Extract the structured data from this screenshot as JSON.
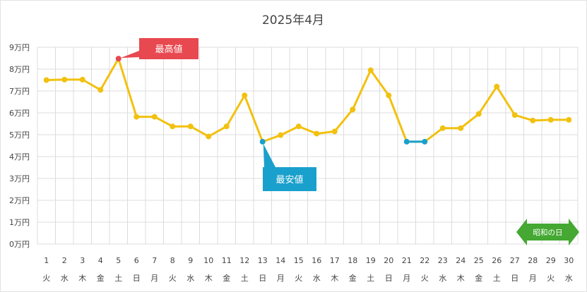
{
  "chart_data": {
    "type": "line",
    "title": "2025年4月",
    "y_ticks": [
      "0万円",
      "1万円",
      "2万円",
      "3万円",
      "4万円",
      "5万円",
      "6万円",
      "7万円",
      "8万円",
      "9万円"
    ],
    "ylim": [
      0,
      9
    ],
    "x": [
      1,
      2,
      3,
      4,
      5,
      6,
      7,
      8,
      9,
      10,
      11,
      12,
      13,
      14,
      15,
      16,
      17,
      18,
      19,
      20,
      21,
      22,
      23,
      24,
      25,
      26,
      27,
      28,
      29,
      30
    ],
    "x_labels": [
      "1",
      "2",
      "3",
      "4",
      "5",
      "6",
      "7",
      "8",
      "9",
      "10",
      "11",
      "12",
      "13",
      "14",
      "15",
      "16",
      "17",
      "18",
      "19",
      "20",
      "21",
      "22",
      "23",
      "24",
      "25",
      "26",
      "27",
      "28",
      "29",
      "30"
    ],
    "weekdays": [
      "火",
      "水",
      "木",
      "金",
      "土",
      "日",
      "月",
      "火",
      "水",
      "木",
      "金",
      "土",
      "日",
      "月",
      "火",
      "水",
      "木",
      "金",
      "土",
      "日",
      "月",
      "火",
      "水",
      "木",
      "金",
      "土",
      "日",
      "月",
      "火",
      "水"
    ],
    "series": [
      {
        "values": [
          7.5,
          7.52,
          7.52,
          7.05,
          8.48,
          5.82,
          5.82,
          5.38,
          5.38,
          4.92,
          5.38,
          6.8,
          4.68,
          4.98,
          5.38,
          5.05,
          5.15,
          6.15,
          7.95,
          6.8,
          4.68,
          4.68,
          5.3,
          5.3,
          5.95,
          7.2,
          5.9,
          5.65,
          5.68,
          5.68
        ],
        "color": "#f2c10f"
      }
    ],
    "max_index": 4,
    "min_indices": [
      12,
      20,
      21
    ],
    "max_color": "#e8484f",
    "min_color": "#1aa0cc",
    "annotations": {
      "max_label": "最高値",
      "min_label": "最安値",
      "holiday_label": "昭和の日"
    },
    "holiday_color": "#44a832",
    "grid": true
  }
}
